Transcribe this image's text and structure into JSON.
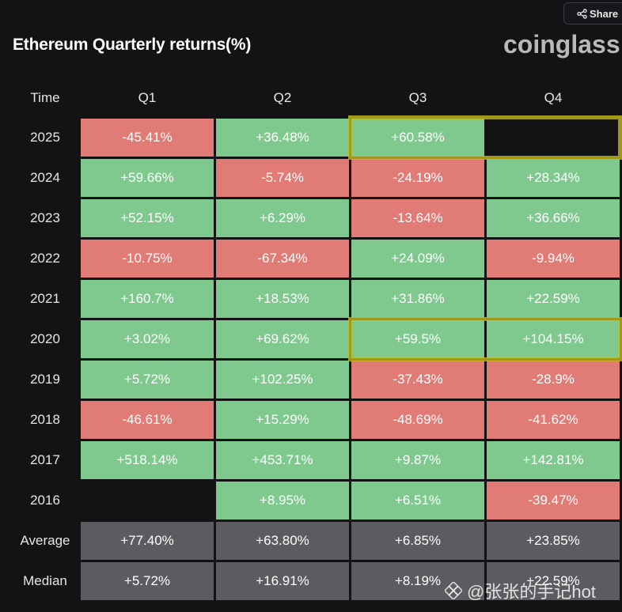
{
  "share": {
    "label": "Share"
  },
  "title": "Ethereum Quarterly returns(%)",
  "logo": "coinglass",
  "watermark": {
    "text": "@张张的手记hot"
  },
  "colors": {
    "positive": "#7fc98f",
    "negative": "#e07b76",
    "stat": "#5c5c60",
    "highlight": "#c8be1e",
    "background": "#131316"
  },
  "chart_data": {
    "type": "table",
    "title": "Ethereum Quarterly returns(%)",
    "row_header": "Time",
    "columns": [
      "Q1",
      "Q2",
      "Q3",
      "Q4"
    ],
    "rows": [
      {
        "label": "2025",
        "cells": [
          "-45.41%",
          "+36.48%",
          "+60.58%",
          ""
        ],
        "values": [
          -45.41,
          36.48,
          60.58,
          null
        ]
      },
      {
        "label": "2024",
        "cells": [
          "+59.66%",
          "-5.74%",
          "-24.19%",
          "+28.34%"
        ],
        "values": [
          59.66,
          -5.74,
          -24.19,
          28.34
        ]
      },
      {
        "label": "2023",
        "cells": [
          "+52.15%",
          "+6.29%",
          "-13.64%",
          "+36.66%"
        ],
        "values": [
          52.15,
          6.29,
          -13.64,
          36.66
        ]
      },
      {
        "label": "2022",
        "cells": [
          "-10.75%",
          "-67.34%",
          "+24.09%",
          "-9.94%"
        ],
        "values": [
          -10.75,
          -67.34,
          24.09,
          -9.94
        ]
      },
      {
        "label": "2021",
        "cells": [
          "+160.7%",
          "+18.53%",
          "+31.86%",
          "+22.59%"
        ],
        "values": [
          160.7,
          18.53,
          31.86,
          22.59
        ]
      },
      {
        "label": "2020",
        "cells": [
          "+3.02%",
          "+69.62%",
          "+59.5%",
          "+104.15%"
        ],
        "values": [
          3.02,
          69.62,
          59.5,
          104.15
        ]
      },
      {
        "label": "2019",
        "cells": [
          "+5.72%",
          "+102.25%",
          "-37.43%",
          "-28.9%"
        ],
        "values": [
          5.72,
          102.25,
          -37.43,
          -28.9
        ]
      },
      {
        "label": "2018",
        "cells": [
          "-46.61%",
          "+15.29%",
          "-48.69%",
          "-41.62%"
        ],
        "values": [
          -46.61,
          15.29,
          -48.69,
          -41.62
        ]
      },
      {
        "label": "2017",
        "cells": [
          "+518.14%",
          "+453.71%",
          "+9.87%",
          "+142.81%"
        ],
        "values": [
          518.14,
          453.71,
          9.87,
          142.81
        ]
      },
      {
        "label": "2016",
        "cells": [
          "",
          "+8.95%",
          "+6.51%",
          "-39.47%"
        ],
        "values": [
          null,
          8.95,
          6.51,
          -39.47
        ]
      }
    ],
    "summary_rows": [
      {
        "label": "Average",
        "cells": [
          "+77.40%",
          "+63.80%",
          "+6.85%",
          "+23.85%"
        ],
        "values": [
          77.4,
          63.8,
          6.85,
          23.85
        ]
      },
      {
        "label": "Median",
        "cells": [
          "+5.72%",
          "+16.91%",
          "+8.19%",
          "+22.59%"
        ],
        "values": [
          5.72,
          16.91,
          8.19,
          22.59
        ]
      }
    ],
    "highlighted_cells": [
      {
        "row": "2025",
        "columns": [
          "Q3",
          "Q4"
        ]
      },
      {
        "row": "2020",
        "columns": [
          "Q3",
          "Q4"
        ]
      }
    ]
  }
}
